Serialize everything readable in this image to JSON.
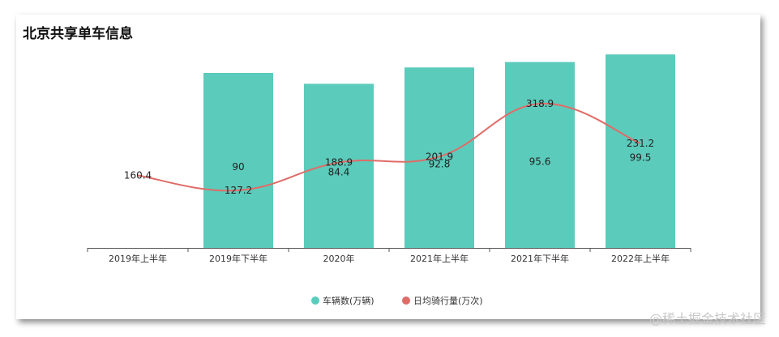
{
  "chart_data": {
    "type": "bar+line",
    "title": "北京共享单车信息",
    "categories": [
      "2019年上半年",
      "2019年下半年",
      "2020年",
      "2021年上半年",
      "2021年下半年",
      "2022年上半年"
    ],
    "series": [
      {
        "name": "车辆数(万辆)",
        "type": "bar",
        "color": "#5bcbbb",
        "values": [
          null,
          90,
          84.4,
          92.8,
          95.6,
          99.5
        ]
      },
      {
        "name": "日均骑行量(万次)",
        "type": "line",
        "color": "#e06c68",
        "values": [
          160.4,
          127.2,
          188.9,
          201.9,
          318.9,
          231.2
        ]
      }
    ],
    "bar_ylim": [
      0,
      100
    ],
    "line_ylim": [
      0,
      430
    ],
    "legend_position": "bottom-center",
    "grid": false
  },
  "watermark": "@稀土掘金技术社区"
}
